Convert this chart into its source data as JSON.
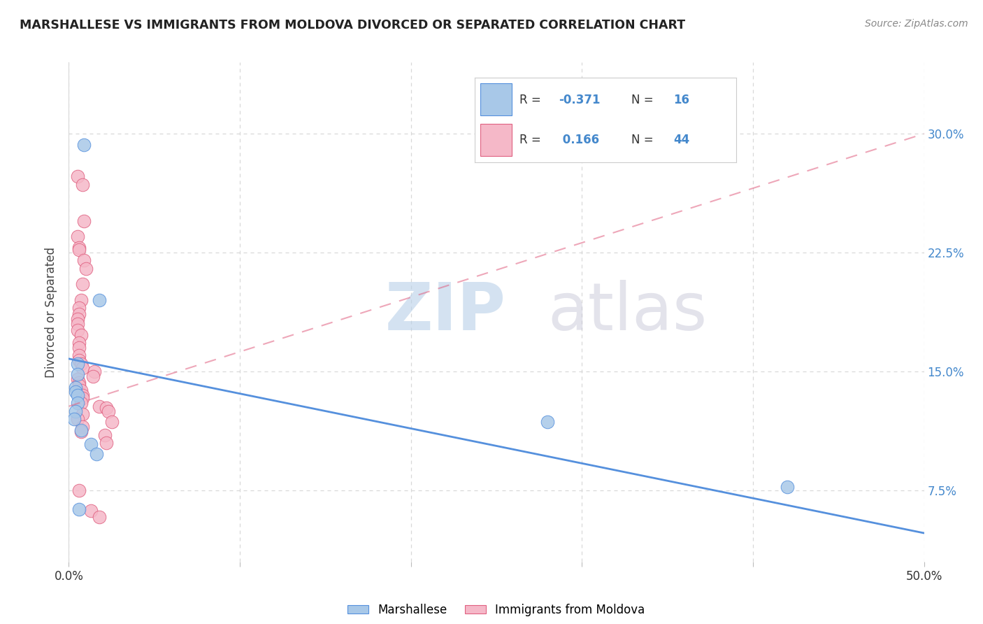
{
  "title": "MARSHALLESE VS IMMIGRANTS FROM MOLDOVA DIVORCED OR SEPARATED CORRELATION CHART",
  "source": "Source: ZipAtlas.com",
  "ylabel": "Divorced or Separated",
  "right_yticks": [
    "7.5%",
    "15.0%",
    "22.5%",
    "30.0%"
  ],
  "right_ytick_vals": [
    0.075,
    0.15,
    0.225,
    0.3
  ],
  "xlim": [
    0.0,
    0.5
  ],
  "ylim": [
    0.03,
    0.345
  ],
  "blue_color": "#a8c8e8",
  "pink_color": "#f5b8c8",
  "blue_line_color": "#5590dd",
  "pink_line_color": "#e06080",
  "grid_color": "#d8d8d8",
  "blue_line_x": [
    0.0,
    0.5
  ],
  "blue_line_y": [
    0.158,
    0.048
  ],
  "pink_line_x": [
    0.0,
    0.5
  ],
  "pink_line_y": [
    0.128,
    0.3
  ],
  "blue_scatter_x": [
    0.009,
    0.018,
    0.005,
    0.005,
    0.004,
    0.004,
    0.005,
    0.005,
    0.004,
    0.003,
    0.007,
    0.013,
    0.016,
    0.28,
    0.42,
    0.006
  ],
  "blue_scatter_y": [
    0.293,
    0.195,
    0.155,
    0.148,
    0.14,
    0.137,
    0.135,
    0.13,
    0.125,
    0.12,
    0.113,
    0.104,
    0.098,
    0.118,
    0.077,
    0.063
  ],
  "pink_scatter_x": [
    0.005,
    0.008,
    0.009,
    0.005,
    0.006,
    0.006,
    0.009,
    0.01,
    0.008,
    0.007,
    0.006,
    0.006,
    0.005,
    0.005,
    0.005,
    0.007,
    0.006,
    0.006,
    0.006,
    0.006,
    0.007,
    0.008,
    0.015,
    0.014,
    0.005,
    0.006,
    0.006,
    0.007,
    0.008,
    0.008,
    0.007,
    0.018,
    0.022,
    0.023,
    0.008,
    0.005,
    0.025,
    0.008,
    0.007,
    0.021,
    0.022,
    0.006,
    0.013,
    0.018
  ],
  "pink_scatter_y": [
    0.273,
    0.268,
    0.245,
    0.235,
    0.228,
    0.227,
    0.22,
    0.215,
    0.205,
    0.195,
    0.19,
    0.186,
    0.183,
    0.18,
    0.176,
    0.173,
    0.168,
    0.165,
    0.16,
    0.157,
    0.155,
    0.152,
    0.15,
    0.147,
    0.145,
    0.143,
    0.141,
    0.138,
    0.135,
    0.133,
    0.13,
    0.128,
    0.127,
    0.125,
    0.123,
    0.12,
    0.118,
    0.115,
    0.112,
    0.11,
    0.105,
    0.075,
    0.062,
    0.058
  ]
}
